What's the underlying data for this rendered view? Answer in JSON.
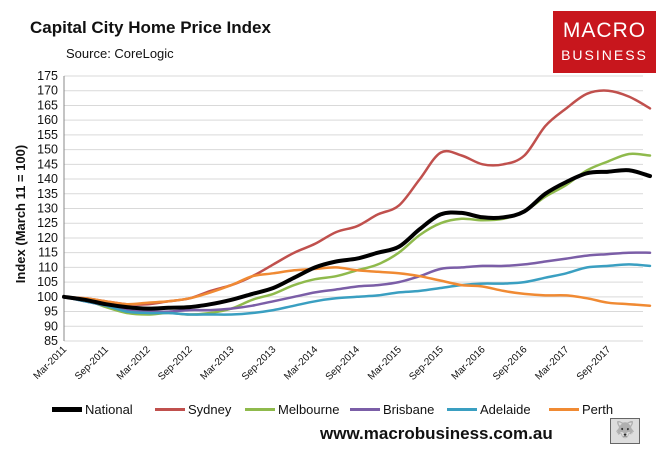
{
  "header": {
    "title": "Capital City Home Price Index",
    "subtitle": "Source: CoreLogic"
  },
  "logo": {
    "line1": "MACRO",
    "line2": "BUSINESS"
  },
  "footer": {
    "url": "www.macrobusiness.com.au",
    "mascot": "wolf-icon"
  },
  "chart_data": {
    "type": "line",
    "title": "Capital City Home Price Index",
    "ylabel": "Index (March 11 = 100)",
    "xlabel": "",
    "ylim": [
      85,
      175
    ],
    "yticks": [
      85,
      90,
      95,
      100,
      105,
      110,
      115,
      120,
      125,
      130,
      135,
      140,
      145,
      150,
      155,
      160,
      165,
      170,
      175
    ],
    "grid": true,
    "x_start": "Mar-2011",
    "x_end": "Feb-2018",
    "months_count": 84,
    "x_ticks": [
      {
        "label": "Mar-2011",
        "month": 0
      },
      {
        "label": "Sep-2011",
        "month": 6
      },
      {
        "label": "Mar-2012",
        "month": 12
      },
      {
        "label": "Sep-2012",
        "month": 18
      },
      {
        "label": "Mar-2013",
        "month": 24
      },
      {
        "label": "Sep-2013",
        "month": 30
      },
      {
        "label": "Mar-2014",
        "month": 36
      },
      {
        "label": "Sep-2014",
        "month": 42
      },
      {
        "label": "Mar-2015",
        "month": 48
      },
      {
        "label": "Sep-2015",
        "month": 54
      },
      {
        "label": "Mar-2016",
        "month": 60
      },
      {
        "label": "Sep-2016",
        "month": 66
      },
      {
        "label": "Mar-2017",
        "month": 72
      },
      {
        "label": "Sep-2017",
        "month": 78
      }
    ],
    "legend_position": "bottom",
    "series": [
      {
        "name": "National",
        "color": "#000000",
        "width": 4,
        "points": [
          [
            0,
            100
          ],
          [
            3,
            99
          ],
          [
            6,
            97.5
          ],
          [
            9,
            96.5
          ],
          [
            12,
            96
          ],
          [
            15,
            96.3
          ],
          [
            18,
            96.5
          ],
          [
            21,
            97.5
          ],
          [
            24,
            99
          ],
          [
            27,
            101
          ],
          [
            30,
            103
          ],
          [
            33,
            106.5
          ],
          [
            36,
            110
          ],
          [
            39,
            112
          ],
          [
            42,
            113
          ],
          [
            45,
            115
          ],
          [
            48,
            117
          ],
          [
            51,
            123
          ],
          [
            54,
            128
          ],
          [
            57,
            128.5
          ],
          [
            60,
            127
          ],
          [
            63,
            127
          ],
          [
            66,
            129
          ],
          [
            69,
            135
          ],
          [
            72,
            139
          ],
          [
            75,
            142
          ],
          [
            78,
            142.5
          ],
          [
            81,
            143
          ],
          [
            84,
            141
          ]
        ]
      },
      {
        "name": "Sydney",
        "color": "#c0504d",
        "width": 2.5,
        "points": [
          [
            0,
            100
          ],
          [
            3,
            99.5
          ],
          [
            6,
            98.5
          ],
          [
            9,
            97.5
          ],
          [
            12,
            97.5
          ],
          [
            15,
            98.5
          ],
          [
            18,
            99.5
          ],
          [
            21,
            102
          ],
          [
            24,
            104
          ],
          [
            27,
            107
          ],
          [
            30,
            111
          ],
          [
            33,
            115
          ],
          [
            36,
            118
          ],
          [
            39,
            122
          ],
          [
            42,
            124
          ],
          [
            45,
            128
          ],
          [
            48,
            131
          ],
          [
            51,
            140
          ],
          [
            54,
            149
          ],
          [
            57,
            148
          ],
          [
            60,
            145
          ],
          [
            63,
            145
          ],
          [
            66,
            148
          ],
          [
            69,
            158
          ],
          [
            72,
            164
          ],
          [
            75,
            169
          ],
          [
            78,
            170
          ],
          [
            81,
            168
          ],
          [
            84,
            164
          ]
        ]
      },
      {
        "name": "Melbourne",
        "color": "#8fba4c",
        "width": 2.5,
        "points": [
          [
            0,
            100
          ],
          [
            3,
            99
          ],
          [
            6,
            96.5
          ],
          [
            9,
            94.5
          ],
          [
            12,
            94
          ],
          [
            15,
            94.5
          ],
          [
            18,
            94
          ],
          [
            21,
            94.5
          ],
          [
            24,
            96
          ],
          [
            27,
            99
          ],
          [
            30,
            101
          ],
          [
            33,
            104
          ],
          [
            36,
            106
          ],
          [
            39,
            107
          ],
          [
            42,
            109
          ],
          [
            45,
            111
          ],
          [
            48,
            115
          ],
          [
            51,
            121
          ],
          [
            54,
            125
          ],
          [
            57,
            126.5
          ],
          [
            60,
            126
          ],
          [
            63,
            126.5
          ],
          [
            66,
            129
          ],
          [
            69,
            134
          ],
          [
            72,
            138
          ],
          [
            75,
            143
          ],
          [
            78,
            146
          ],
          [
            81,
            148.5
          ],
          [
            84,
            148
          ]
        ]
      },
      {
        "name": "Brisbane",
        "color": "#7b5ea7",
        "width": 2.5,
        "points": [
          [
            0,
            100
          ],
          [
            3,
            98.5
          ],
          [
            6,
            97
          ],
          [
            9,
            95.5
          ],
          [
            12,
            95
          ],
          [
            15,
            95
          ],
          [
            18,
            95.5
          ],
          [
            21,
            95.5
          ],
          [
            24,
            96
          ],
          [
            27,
            97
          ],
          [
            30,
            98.5
          ],
          [
            33,
            100
          ],
          [
            36,
            101.5
          ],
          [
            39,
            102.5
          ],
          [
            42,
            103.5
          ],
          [
            45,
            104
          ],
          [
            48,
            105
          ],
          [
            51,
            107
          ],
          [
            54,
            109.5
          ],
          [
            57,
            110
          ],
          [
            60,
            110.5
          ],
          [
            63,
            110.5
          ],
          [
            66,
            111
          ],
          [
            69,
            112
          ],
          [
            72,
            113
          ],
          [
            75,
            114
          ],
          [
            78,
            114.5
          ],
          [
            81,
            115
          ],
          [
            84,
            115
          ]
        ]
      },
      {
        "name": "Adelaide",
        "color": "#3a9fc1",
        "width": 2.5,
        "points": [
          [
            0,
            100
          ],
          [
            3,
            98.5
          ],
          [
            6,
            97
          ],
          [
            9,
            95
          ],
          [
            12,
            94.5
          ],
          [
            15,
            94.5
          ],
          [
            18,
            94
          ],
          [
            21,
            94
          ],
          [
            24,
            94
          ],
          [
            27,
            94.5
          ],
          [
            30,
            95.5
          ],
          [
            33,
            97
          ],
          [
            36,
            98.5
          ],
          [
            39,
            99.5
          ],
          [
            42,
            100
          ],
          [
            45,
            100.5
          ],
          [
            48,
            101.5
          ],
          [
            51,
            102
          ],
          [
            54,
            103
          ],
          [
            57,
            104
          ],
          [
            60,
            104.5
          ],
          [
            63,
            104.5
          ],
          [
            66,
            105
          ],
          [
            69,
            106.5
          ],
          [
            72,
            108
          ],
          [
            75,
            110
          ],
          [
            78,
            110.5
          ],
          [
            81,
            111
          ],
          [
            84,
            110.5
          ]
        ]
      },
      {
        "name": "Perth",
        "color": "#f08a33",
        "width": 2.5,
        "points": [
          [
            0,
            100
          ],
          [
            3,
            99.5
          ],
          [
            6,
            98.5
          ],
          [
            9,
            97.5
          ],
          [
            12,
            98
          ],
          [
            15,
            98.5
          ],
          [
            18,
            99.5
          ],
          [
            21,
            101.5
          ],
          [
            24,
            104
          ],
          [
            27,
            107
          ],
          [
            30,
            108
          ],
          [
            33,
            109
          ],
          [
            36,
            109.5
          ],
          [
            39,
            110
          ],
          [
            42,
            109
          ],
          [
            45,
            108.5
          ],
          [
            48,
            108
          ],
          [
            51,
            107
          ],
          [
            54,
            105.5
          ],
          [
            57,
            104
          ],
          [
            60,
            103.5
          ],
          [
            63,
            102
          ],
          [
            66,
            101
          ],
          [
            69,
            100.5
          ],
          [
            72,
            100.5
          ],
          [
            75,
            99.5
          ],
          [
            78,
            98
          ],
          [
            81,
            97.5
          ],
          [
            84,
            97
          ]
        ]
      }
    ]
  }
}
